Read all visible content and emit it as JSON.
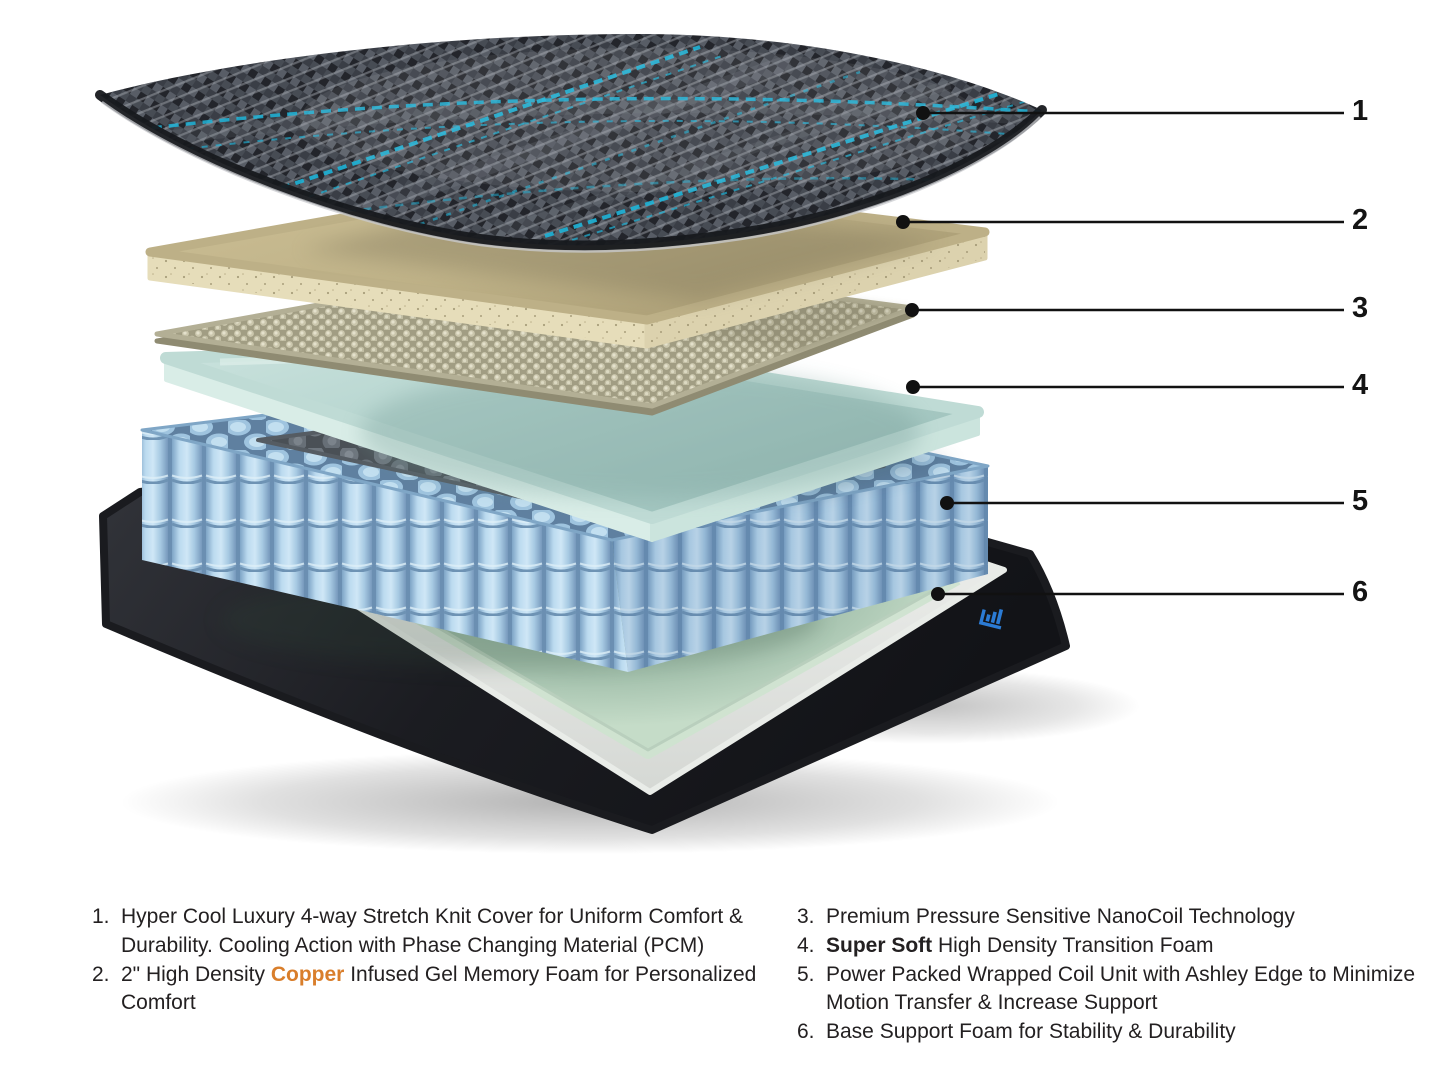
{
  "diagram": {
    "description": "Mattress exploded layer diagram",
    "callouts": [
      {
        "number": "1"
      },
      {
        "number": "2"
      },
      {
        "number": "3"
      },
      {
        "number": "4"
      },
      {
        "number": "5"
      },
      {
        "number": "6"
      }
    ]
  },
  "legend": {
    "items_left": [
      {
        "number": "1.",
        "segments": [
          {
            "text": "Hyper Cool Luxury 4-way Stretch Knit Cover for Uniform Comfort & Durability. Cooling Action with Phase Changing Material (PCM)"
          }
        ]
      },
      {
        "number": "2.",
        "segments": [
          {
            "text": "2\" High Density "
          },
          {
            "text": "Copper",
            "style": "copper"
          },
          {
            "text": " Infused Gel Memory Foam for Personalized Comfort"
          }
        ]
      }
    ],
    "items_right": [
      {
        "number": "3.",
        "segments": [
          {
            "text": "Premium Pressure Sensitive NanoCoil Technology"
          }
        ]
      },
      {
        "number": "4.",
        "segments": [
          {
            "text": "Super Soft",
            "style": "bold"
          },
          {
            "text": " High Density Transition Foam"
          }
        ]
      },
      {
        "number": "5.",
        "segments": [
          {
            "text": "Power Packed Wrapped Coil Unit with Ashley Edge to Minimize Motion Transfer & Increase Support"
          }
        ]
      },
      {
        "number": "6.",
        "segments": [
          {
            "text": "Base Support Foam for Stability & Durability"
          }
        ]
      }
    ]
  },
  "icons": {
    "base_corner_emblem": "brand-emblem-icon"
  },
  "colors": {
    "copper_text": "#D97E2B",
    "accent_cyan": "#1FB4D8",
    "knit_dark": "#2E3138",
    "memory_foam_tan": "#C9BC93",
    "nanocoil_olive": "#ACA88E",
    "transition_mint": "#BBD8D3",
    "coil_blue": "#A9CBE4",
    "coil_top_gray": "#6E767E",
    "base_black": "#1A1B1F",
    "base_trim_white": "#EFF1EE",
    "base_foam_green": "#9DBCA6",
    "emblem_blue": "#2B7BD4"
  }
}
